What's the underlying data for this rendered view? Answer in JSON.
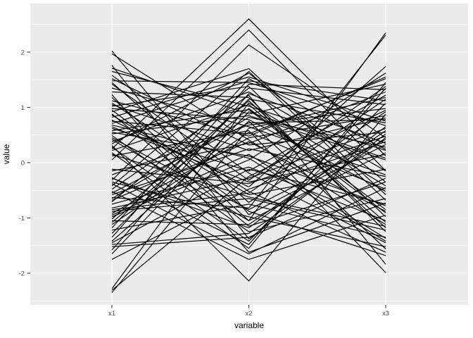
{
  "figure": {
    "kind": "ggplot-parallel-coordinates",
    "background_color": "#FFFFFF",
    "panel_color": "#EBEBEB",
    "grid_color": "#FFFFFF",
    "tick_mark_color": "#333333",
    "axis_text_color": "#4D4D4D",
    "axis_title_color": "#000000",
    "line_color": "#000000"
  },
  "chart_data": {
    "type": "line",
    "subtype": "parallel-coordinates",
    "title": "",
    "xlabel": "variable",
    "ylabel": "value",
    "categories": [
      "x1",
      "x2",
      "x3"
    ],
    "y_ticks": [
      2,
      1,
      0,
      -1,
      -2
    ],
    "y_minor_ticks": [
      2.5,
      1.5,
      0.5,
      -0.5,
      -1.5,
      -2.5
    ],
    "ylim": [
      -2.58,
      2.88
    ],
    "grid": "major-and-minor-horizontal, major-vertical-at-categories",
    "legend": "none",
    "series": [
      [
        0.25,
        2.6,
        0.12
      ],
      [
        0.05,
        2.4,
        -0.15
      ],
      [
        -0.32,
        2.13,
        0.45
      ],
      [
        0.92,
        1.7,
        -0.58
      ],
      [
        0.31,
        -2.14,
        0.88
      ],
      [
        -2.35,
        0.62,
        1.18
      ],
      [
        -2.28,
        1.08,
        -0.42
      ],
      [
        -2.31,
        -0.25,
        0.95
      ],
      [
        2.02,
        -0.94,
        0.33
      ],
      [
        1.97,
        0.41,
        -1.12
      ],
      [
        1.76,
        -1.38,
        0.52
      ],
      [
        1.71,
        0.88,
        1.42
      ],
      [
        0.42,
        -1.05,
        2.35
      ],
      [
        -0.63,
        -0.82,
        2.31
      ],
      [
        0.12,
        0.58,
        -1.99
      ],
      [
        -0.48,
        1.22,
        -1.84
      ],
      [
        1.48,
        1.45,
        0.67
      ],
      [
        -1.52,
        -1.35,
        -0.28
      ],
      [
        0.77,
        -0.44,
        1.74
      ],
      [
        -0.95,
        0.15,
        -1.37
      ],
      [
        1.23,
        -1.62,
        -0.73
      ],
      [
        -1.18,
        1.52,
        0.24
      ],
      [
        0.58,
        0.96,
        -0.91
      ],
      [
        -0.27,
        -1.48,
        1.35
      ],
      [
        1.05,
        0.22,
        0.81
      ],
      [
        -1.42,
        0.75,
        -1.56
      ],
      [
        0.86,
        -0.58,
        -0.12
      ],
      [
        -0.71,
        1.35,
        1.05
      ],
      [
        1.58,
        -0.19,
        -1.45
      ],
      [
        -1.05,
        -1.12,
        0.58
      ],
      [
        0.34,
        1.62,
        -0.35
      ],
      [
        -0.88,
        -0.65,
        -1.22
      ],
      [
        1.12,
        0.48,
        1.55
      ],
      [
        -1.65,
        0.92,
        0.08
      ],
      [
        0.49,
        -1.25,
        -0.65
      ],
      [
        -0.15,
        0.35,
        1.28
      ],
      [
        0.95,
        -0.88,
        -1.68
      ],
      [
        -1.28,
        1.15,
        0.72
      ],
      [
        0.65,
        -0.35,
        0.15
      ],
      [
        -0.52,
        -1.75,
        -0.95
      ],
      [
        1.35,
        0.65,
        -0.22
      ],
      [
        -0.98,
        0.05,
        1.62
      ],
      [
        0.22,
        1.05,
        -1.08
      ],
      [
        -1.75,
        -0.48,
        0.38
      ],
      [
        0.71,
        1.48,
        1.12
      ],
      [
        -0.35,
        -0.98,
        -1.52
      ],
      [
        1.45,
        -0.72,
        0.92
      ],
      [
        -1.12,
        0.55,
        -0.48
      ],
      [
        0.18,
        -1.55,
        1.45
      ],
      [
        -0.65,
        0.82,
        0.28
      ],
      [
        1.28,
        1.18,
        -1.25
      ],
      [
        -0.82,
        -0.28,
        0.62
      ],
      [
        0.55,
        0.12,
        -0.78
      ],
      [
        -1.35,
        1.42,
        1.32
      ],
      [
        0.88,
        -1.15,
        -0.35
      ],
      [
        -0.22,
        0.68,
        0.98
      ],
      [
        1.08,
        -0.52,
        -1.62
      ],
      [
        -1.48,
        -1.28,
        0.45
      ],
      [
        0.38,
        1.28,
        -0.15
      ],
      [
        -0.75,
        -0.08,
        -1.05
      ],
      [
        1.52,
        0.32,
        0.55
      ],
      [
        -1.08,
        0.98,
        -0.85
      ],
      [
        0.28,
        -1.42,
        1.08
      ],
      [
        -0.58,
        0.25,
        -0.25
      ],
      [
        0.82,
        1.55,
        0.75
      ],
      [
        -1.22,
        -0.75,
        -1.35
      ],
      [
        0.62,
        -0.15,
        1.22
      ],
      [
        -0.42,
        1.65,
        -0.68
      ],
      [
        1.18,
        -1.05,
        0.18
      ],
      [
        -0.92,
        0.45,
        0.85
      ],
      [
        0.15,
        -0.62,
        -1.15
      ],
      [
        -1.58,
        1.25,
        0.35
      ],
      [
        0.98,
        0.78,
        -0.52
      ],
      [
        -0.28,
        -1.18,
        0.65
      ],
      [
        1.42,
        -0.32,
        1.38
      ],
      [
        -1.02,
        1.12,
        -1.18
      ],
      [
        0.45,
        -0.85,
        0.42
      ],
      [
        -0.68,
        0.38,
        -0.88
      ],
      [
        1.65,
        1.02,
        0.22
      ],
      [
        -0.38,
        -1.65,
        -0.45
      ],
      [
        0.75,
        0.52,
        1.52
      ],
      [
        -1.45,
        -0.12,
        -0.75
      ],
      [
        0.52,
        0.85,
        0.05
      ],
      [
        -0.85,
        -0.55,
        1.15
      ],
      [
        1.02,
        1.38,
        -0.98
      ],
      [
        -0.12,
        -0.38,
        0.48
      ],
      [
        0.68,
        0.08,
        -1.42
      ],
      [
        -0.55,
        0.72,
        0.78
      ]
    ]
  }
}
